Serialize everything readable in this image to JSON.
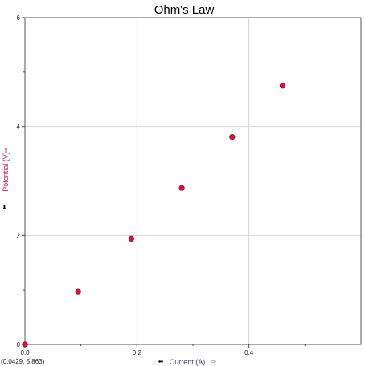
{
  "chart_data": {
    "type": "scatter",
    "title": "Ohm's Law",
    "xlabel": "Current (A)",
    "ylabel": "Potential (V)",
    "xlim": [
      0,
      0.6
    ],
    "ylim": [
      0,
      6
    ],
    "x_ticks": [
      "0.0",
      "0.2",
      "0.4"
    ],
    "y_ticks": [
      "0",
      "2",
      "4",
      "6"
    ],
    "x_tick_values": [
      0,
      0.2,
      0.4
    ],
    "y_tick_values": [
      0,
      2,
      4,
      6
    ],
    "grid": true,
    "series": [
      {
        "x": [
          0.0,
          0.095,
          0.19,
          0.28,
          0.37,
          0.46
        ],
        "y": [
          0.0,
          0.97,
          1.94,
          2.87,
          3.81,
          4.75
        ]
      }
    ],
    "marker_color": "#e0103c",
    "xlabel_color": "#3a3a8a",
    "ylabel_color": "#c0204a",
    "cursor_readout": "(0.0429, 5.863)"
  }
}
